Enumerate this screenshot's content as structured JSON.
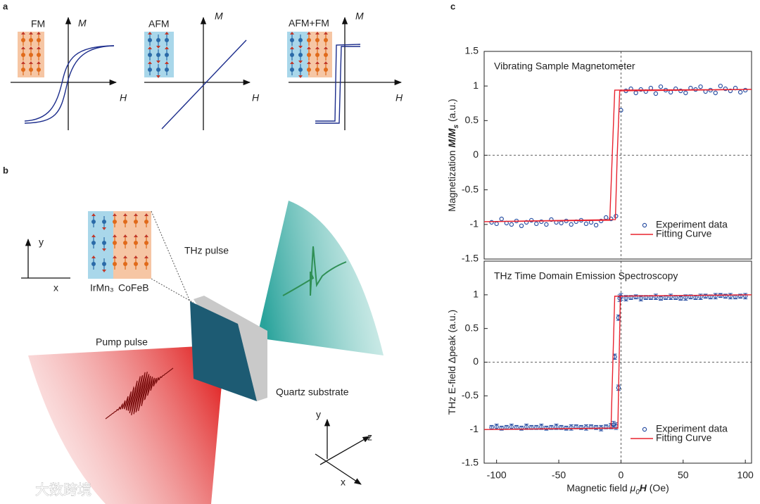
{
  "panel_a": {
    "label": "a",
    "diagrams": [
      {
        "title": "FM",
        "x_label": "H",
        "y_label": "M"
      },
      {
        "title": "AFM",
        "x_label": "H",
        "y_label": "M"
      },
      {
        "title": "AFM+FM",
        "x_label": "H",
        "y_label": "M"
      }
    ]
  },
  "panel_b": {
    "label": "b",
    "layers": [
      "IrMn₃",
      "CoFeB"
    ],
    "thz_label": "THz pulse",
    "pump_label": "Pump pulse",
    "substrate_label": "Quartz substrate",
    "axes_2d": {
      "x": "x",
      "y": "y"
    },
    "axes_3d": {
      "x": "x",
      "y": "y",
      "z": "z"
    }
  },
  "panel_c_label": "c",
  "watermark": "大数跨境",
  "chart_data": [
    {
      "type": "scatter",
      "title": "Vibrating Sample Magnetometer",
      "y_label": [
        "Magnetization ",
        "M/M",
        "s",
        " (a.u.)"
      ],
      "xlim": [
        -110,
        105
      ],
      "ylim": [
        -1.5,
        1.5
      ],
      "yticks": [
        1.5,
        1,
        0.5,
        0,
        -0.5,
        -1,
        -1.5
      ],
      "zero_lines": true,
      "legend": "lower right",
      "series": [
        {
          "name": "Experiment data",
          "type": "scatter",
          "color": "#2b50a3",
          "x": [
            -104,
            -100,
            -96,
            -92,
            -88,
            -84,
            -80,
            -76,
            -72,
            -68,
            -64,
            -60,
            -56,
            -52,
            -48,
            -44,
            -40,
            -36,
            -32,
            -28,
            -24,
            -20,
            -16,
            -12,
            -8,
            -4,
            0,
            4,
            8,
            12,
            16,
            20,
            24,
            28,
            32,
            36,
            40,
            44,
            48,
            52,
            56,
            60,
            64,
            68,
            72,
            76,
            80,
            84,
            88,
            92,
            96,
            100
          ],
          "values": [
            -0.97,
            -0.99,
            -0.92,
            -0.98,
            -1.0,
            -0.95,
            -1.02,
            -0.97,
            -0.94,
            -0.99,
            -0.96,
            -1.0,
            -0.93,
            -0.97,
            -0.98,
            -0.95,
            -1.0,
            -0.96,
            -0.94,
            -0.99,
            -0.97,
            -1.01,
            -0.95,
            -0.9,
            -0.92,
            -0.88,
            0.65,
            0.93,
            0.96,
            0.9,
            0.95,
            0.92,
            0.97,
            0.89,
            0.99,
            0.94,
            0.91,
            0.96,
            0.93,
            0.9,
            0.97,
            0.95,
            0.99,
            0.92,
            0.94,
            0.9,
            1.0,
            0.96,
            0.93,
            0.97,
            0.91,
            0.94
          ]
        },
        {
          "name": "Fitting Curve",
          "type": "line",
          "color": "#e8232f",
          "x": [
            -110,
            -9,
            -7,
            -5,
            105,
            null,
            105,
            -1,
            -3,
            -4.5,
            -110
          ],
          "values": [
            -0.96,
            -0.94,
            0,
            0.94,
            0.95,
            null,
            0.95,
            0.93,
            0,
            -0.93,
            -0.96
          ]
        }
      ]
    },
    {
      "type": "scatter",
      "title": "THz Time Domain Emission Spectroscopy",
      "y_label": [
        "THz E-field Δpeak (a.u.)"
      ],
      "x_label": [
        "Magnetic field ",
        "μ",
        "0",
        "H",
        " (Oe)"
      ],
      "xlim": [
        -110,
        105
      ],
      "ylim": [
        -1.5,
        1.5
      ],
      "xticks": [
        -100,
        -50,
        0,
        50,
        100
      ],
      "yticks": [
        1,
        0.5,
        0,
        -0.5,
        -1,
        -1.5
      ],
      "zero_lines": true,
      "legend": "lower right",
      "series": [
        {
          "name": "Experiment data",
          "type": "scatter",
          "color": "#2b50a3",
          "x": [
            -104,
            -100,
            -96,
            -92,
            -88,
            -84,
            -80,
            -76,
            -72,
            -68,
            -64,
            -60,
            -56,
            -52,
            -48,
            -44,
            -40,
            -36,
            -32,
            -28,
            -24,
            -20,
            -16,
            -12,
            -8,
            -4,
            0,
            4,
            8,
            12,
            16,
            20,
            24,
            28,
            32,
            36,
            40,
            44,
            48,
            52,
            56,
            60,
            64,
            68,
            72,
            76,
            80,
            84,
            88,
            92,
            96,
            100,
            -6,
            -5,
            -2,
            -2,
            -1
          ],
          "values": [
            -0.97,
            -0.96,
            -0.98,
            -0.97,
            -0.96,
            -0.97,
            -0.98,
            -0.96,
            -0.97,
            -0.97,
            -0.96,
            -0.98,
            -0.97,
            -0.96,
            -0.97,
            -0.98,
            -0.97,
            -0.96,
            -0.97,
            -0.97,
            -0.96,
            -0.97,
            -0.98,
            -0.96,
            -0.95,
            -0.95,
            0.97,
            0.95,
            0.96,
            0.97,
            0.95,
            0.96,
            0.96,
            0.97,
            0.95,
            0.96,
            0.97,
            0.96,
            0.95,
            0.96,
            0.97,
            0.96,
            0.97,
            0.98,
            0.97,
            0.98,
            0.99,
            0.98,
            0.98,
            0.97,
            0.98,
            0.98,
            -0.93,
            0.08,
            -0.38,
            0.66,
            0.95
          ],
          "errors": [
            0.03,
            0.04,
            0.03,
            0.03,
            0.04,
            0.03,
            0.03,
            0.04,
            0.03,
            0.03,
            0.04,
            0.03,
            0.03,
            0.04,
            0.03,
            0.03,
            0.04,
            0.03,
            0.03,
            0.04,
            0.03,
            0.03,
            0.04,
            0.03,
            0.04,
            0.05,
            0.05,
            0.04,
            0.03,
            0.03,
            0.04,
            0.03,
            0.03,
            0.04,
            0.03,
            0.03,
            0.04,
            0.03,
            0.03,
            0.04,
            0.03,
            0.03,
            0.04,
            0.03,
            0.03,
            0.04,
            0.03,
            0.03,
            0.04,
            0.03,
            0.03,
            0.04,
            0.05,
            0.04,
            0.04,
            0.04,
            0.05
          ]
        },
        {
          "name": "Fitting Curve",
          "type": "line",
          "color": "#e8232f",
          "x": [
            -110,
            -8,
            -6.5,
            -5,
            105,
            null,
            105,
            -0.5,
            -1.5,
            -2.5,
            -110
          ],
          "values": [
            -1.0,
            -0.98,
            0,
            0.98,
            1.0,
            null,
            1.0,
            0.98,
            0,
            -0.98,
            -1.0
          ]
        }
      ]
    }
  ]
}
